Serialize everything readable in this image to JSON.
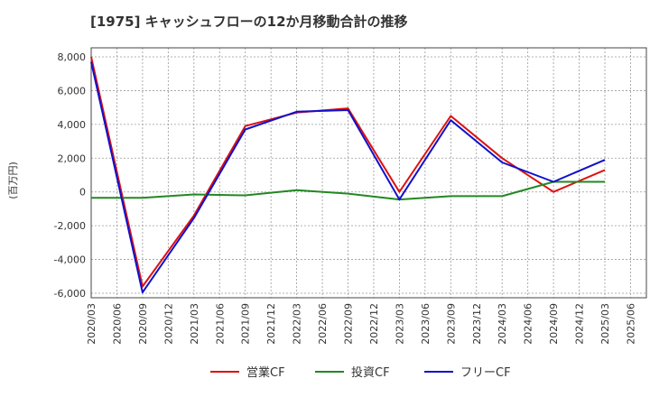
{
  "chart_data": {
    "type": "line",
    "title": "[1975]  キャッシュフローの12か月移動合計の推移",
    "ylabel": "(百万円)",
    "xlabel": "",
    "ylim": [
      -6000,
      8000
    ],
    "yticks": [
      8000,
      6000,
      4000,
      2000,
      0,
      -2000,
      -4000,
      -6000
    ],
    "ytick_labels": [
      "8,000",
      "6,000",
      "4,000",
      "2,000",
      "0",
      "-2,000",
      "-4,000",
      "-6,000"
    ],
    "xtick_labels": [
      "2020/03",
      "2020/06",
      "2020/09",
      "2020/12",
      "2021/03",
      "2021/06",
      "2021/09",
      "2021/12",
      "2022/03",
      "2022/06",
      "2022/09",
      "2022/12",
      "2023/03",
      "2023/06",
      "2023/09",
      "2023/12",
      "2024/03",
      "2024/06",
      "2024/09",
      "2024/12",
      "2025/03",
      "2025/06"
    ],
    "grid": true,
    "legend_position": "bottom",
    "series": [
      {
        "name": "営業CF",
        "color": "#dd1111",
        "x": [
          "2020/03",
          "2020/09",
          "2021/03",
          "2021/09",
          "2022/03",
          "2022/09",
          "2023/03",
          "2023/09",
          "2024/03",
          "2024/09",
          "2025/03"
        ],
        "values": [
          8000,
          -5600,
          -1400,
          3900,
          4700,
          4950,
          0,
          4500,
          2000,
          0,
          1300
        ]
      },
      {
        "name": "投資CF",
        "color": "#228822",
        "x": [
          "2020/03",
          "2020/09",
          "2021/03",
          "2021/09",
          "2022/03",
          "2022/09",
          "2023/03",
          "2023/09",
          "2024/03",
          "2024/09",
          "2025/03"
        ],
        "values": [
          -350,
          -350,
          -150,
          -200,
          100,
          -100,
          -450,
          -250,
          -250,
          600,
          600
        ]
      },
      {
        "name": "フリーCF",
        "color": "#1111cc",
        "x": [
          "2020/03",
          "2020/09",
          "2021/03",
          "2021/09",
          "2022/03",
          "2022/09",
          "2023/03",
          "2023/09",
          "2024/03",
          "2024/09",
          "2025/03"
        ],
        "values": [
          7700,
          -5950,
          -1550,
          3700,
          4750,
          4850,
          -450,
          4250,
          1750,
          600,
          1900
        ]
      }
    ]
  }
}
